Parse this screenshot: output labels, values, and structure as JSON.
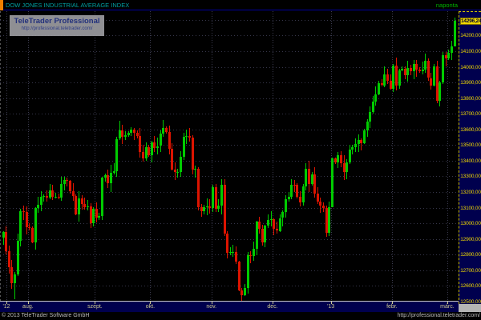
{
  "window": {
    "title": "DOW JONES INDUSTRIAL AVERAGE INDEX",
    "period_label": "naponta",
    "title_color": "#00a0a2",
    "period_color": "#00b400",
    "accent_bar_color": "#f08000"
  },
  "watermark": {
    "line1": "TeleTrader Professional",
    "line2": "http://professional.teletrader.com/"
  },
  "footer": {
    "left": "© 2013 TeleTrader Software GmbH",
    "right": "http://professional.teletrader.com/"
  },
  "y_axis": {
    "tick_min": 12500,
    "tick_max": 14200,
    "tick_step": 100,
    "last_price": 14296.24,
    "label_color": "#f0d800",
    "panel_color": "#00004e"
  },
  "x_axis": {
    "labels": [
      {
        "text": "'12",
        "index": 1.6
      },
      {
        "text": "aug.",
        "index": 9
      },
      {
        "text": "szept.",
        "index": 32
      },
      {
        "text": "okt.",
        "index": 51
      },
      {
        "text": "nov.",
        "index": 72
      },
      {
        "text": "dec.",
        "index": 93
      },
      {
        "text": "'13",
        "index": 113
      },
      {
        "text": "febr.",
        "index": 134
      },
      {
        "text": "márc.",
        "index": 153
      }
    ]
  },
  "chart_data": {
    "type": "candlestick",
    "title": "DOW JONES INDUSTRIAL AVERAGE INDEX",
    "interval": "naponta (daily)",
    "x_range": "July 2012 - March 5 2013",
    "price_window": {
      "top": 14355,
      "bottom": 12505
    },
    "ylim": [
      12500,
      14300
    ],
    "grid": true,
    "first_open": 12907,
    "closes": [
      12943,
      12823,
      12721,
      12617,
      12676,
      12888,
      13076,
      13073,
      12976,
      12971,
      12879,
      13096,
      13118,
      13169,
      13176,
      13165,
      13208,
      13169,
      13172,
      13165,
      13250,
      13275,
      13272,
      13204,
      13173,
      13058,
      13158,
      13125,
      13103,
      13107,
      13001,
      13091,
      13036,
      13047,
      13292,
      13307,
      13254,
      13323,
      13333,
      13540,
      13593,
      13553,
      13564,
      13578,
      13597,
      13579,
      13559,
      13458,
      13413,
      13485,
      13437,
      13515,
      13482,
      13494,
      13575,
      13610,
      13584,
      13474,
      13345,
      13326,
      13329,
      13424,
      13552,
      13557,
      13549,
      13344,
      13346,
      13103,
      13078,
      13104,
      13107,
      13096,
      13233,
      13093,
      13112,
      13246,
      12933,
      12811,
      12815,
      12815,
      12756,
      12571,
      12542,
      12588,
      12796,
      12789,
      12837,
      13010,
      12967,
      12878,
      12985,
      13022,
      13026,
      12966,
      12952,
      13034,
      13074,
      13155,
      13169,
      13248,
      13245,
      13171,
      13135,
      13235,
      13351,
      13252,
      13312,
      13191,
      13139,
      13114,
      13096,
      12938,
      13104,
      13413,
      13391,
      13435,
      13384,
      13329,
      13390,
      13471,
      13488,
      13507,
      13535,
      13511,
      13596,
      13650,
      13712,
      13779,
      13825,
      13896,
      13882,
      13954,
      13910,
      13861,
      14010,
      13880,
      13979,
      13986,
      13944,
      13993,
      13971,
      14019,
      13982,
      13973,
      13982,
      14036,
      13928,
      13881,
      14001,
      13784,
      13900,
      14075,
      14054,
      14090,
      14128,
      14296.24
    ],
    "wick_overrides": {
      "4": {
        "low": 12517
      },
      "40": {
        "high": 13653
      },
      "55": {
        "high": 13661
      },
      "82": {
        "low": 12471
      },
      "83": {
        "low": 12537
      },
      "113": {
        "low": 13310
      },
      "155": {
        "high": 14316,
        "low": 14224
      }
    },
    "colors": {
      "up": "#00cc00",
      "down": "#dd1400",
      "grid": "#36364a"
    }
  }
}
